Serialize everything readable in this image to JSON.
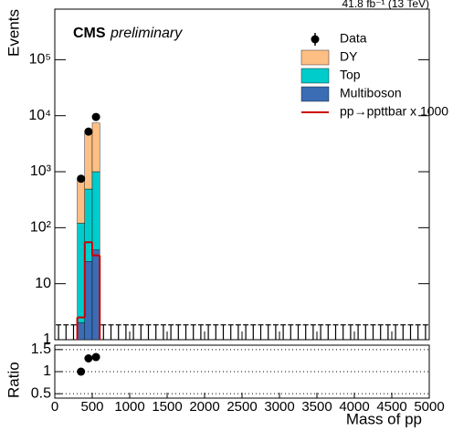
{
  "chart_data": {
    "type": "stacked_histogram",
    "title": "CMS",
    "subtitle": "preliminary",
    "lumi": "41.8 fb⁻¹ (13 TeV)",
    "ylabel": "Events",
    "xlabel": "Mass of pp",
    "log_y": true,
    "xlim": [
      0,
      5000
    ],
    "xticks": [
      0,
      500,
      1000,
      1500,
      2000,
      2500,
      3000,
      3500,
      4000,
      4500,
      5000
    ],
    "ylim": [
      1,
      800000
    ],
    "yticks": [
      1,
      10,
      {
        "value": 100,
        "label": "10²"
      },
      {
        "value": 1000,
        "label": "10³"
      },
      {
        "value": 10000,
        "label": "10⁴"
      },
      {
        "value": 100000,
        "label": "10⁵"
      }
    ],
    "bins": [
      300,
      400,
      500,
      600
    ],
    "series": [
      {
        "name": "Multiboson",
        "color": "#3b6db5",
        "values": [
          2,
          25,
          40
        ]
      },
      {
        "name": "Top",
        "color": "#00cccc",
        "values": [
          118,
          465,
          960
        ]
      },
      {
        "name": "DY",
        "color": "#fdbf84",
        "values": [
          630,
          4500,
          6400
        ]
      }
    ],
    "signal": {
      "name": "pp→ppttbar x 1000",
      "color": "#cc0000",
      "values": [
        2.5,
        55,
        32
      ]
    },
    "data": {
      "name": "Data",
      "x": [
        50,
        150,
        250,
        350,
        450,
        550,
        650,
        750,
        850,
        950,
        1050,
        1150,
        1250,
        1350,
        1450,
        1550,
        1650,
        1750,
        1850,
        1950,
        2050,
        2150,
        2250,
        2350,
        2450,
        2550,
        2650,
        2750,
        2850,
        2950,
        3050,
        3150,
        3250,
        3350,
        3450,
        3550,
        3650,
        3750,
        3850,
        3950,
        4050,
        4150,
        4250,
        4350,
        4450,
        4550,
        4650,
        4750,
        4850,
        4950
      ],
      "values": [
        0,
        0,
        0,
        750,
        5200,
        9500,
        0,
        0,
        0,
        0,
        0,
        0,
        0,
        0,
        0,
        0,
        0,
        0,
        0,
        0,
        0,
        0,
        0,
        0,
        0,
        0,
        0,
        0,
        0,
        0,
        0,
        0,
        0,
        0,
        0,
        0,
        0,
        0,
        0,
        0,
        0,
        0,
        0,
        0,
        0,
        0,
        0,
        0,
        0,
        0
      ],
      "empty_bin_upper": 1.84
    },
    "ratio": {
      "ylabel": "Ratio",
      "ylim": [
        0.4,
        1.6
      ],
      "yticks": [
        0.5,
        1,
        1.5
      ],
      "grid": true,
      "x": [
        350,
        450,
        550
      ],
      "values": [
        1.0,
        1.3,
        1.33
      ]
    }
  }
}
